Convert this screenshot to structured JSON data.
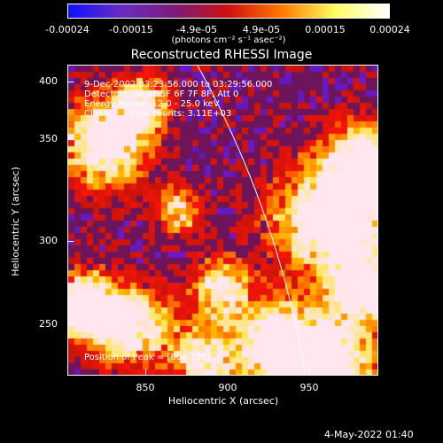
{
  "colorbar": {
    "ticks": [
      "-0.00024",
      "-0.00015",
      "-4.9e-05",
      "4.9e-05",
      "0.00015",
      "0.00024"
    ],
    "unit": "(photons cm⁻² s⁻¹ asec⁻²)",
    "colors": [
      "#1010ff",
      "#6a2cc0",
      "#7a1c7a",
      "#d01010",
      "#ff7a00",
      "#ffff60",
      "#ffffff"
    ]
  },
  "image": {
    "title": "Reconstructed RHESSI Image",
    "time_range": "9-Dec-2002 03:23:56.000 to 03:29:56.000",
    "detectors": "Detectors: 3F 4F 5F 6F 7F 8F, Att 0",
    "energy": "Energy Range: 12.0 - 25.0 keV",
    "clean": "Clean",
    "total_counts": "Total counts: 3.11E+03",
    "peak": "Position of Peak = [806,295]"
  },
  "axes": {
    "x_label": "Heliocentric X (arcsec)",
    "y_label": "Heliocentric Y (arcsec)",
    "x_ticks": [
      "850",
      "900",
      "950"
    ],
    "y_ticks": [
      "400",
      "350",
      "300",
      "250"
    ]
  },
  "footer": {
    "date": "4-May-2022 01:40"
  }
}
